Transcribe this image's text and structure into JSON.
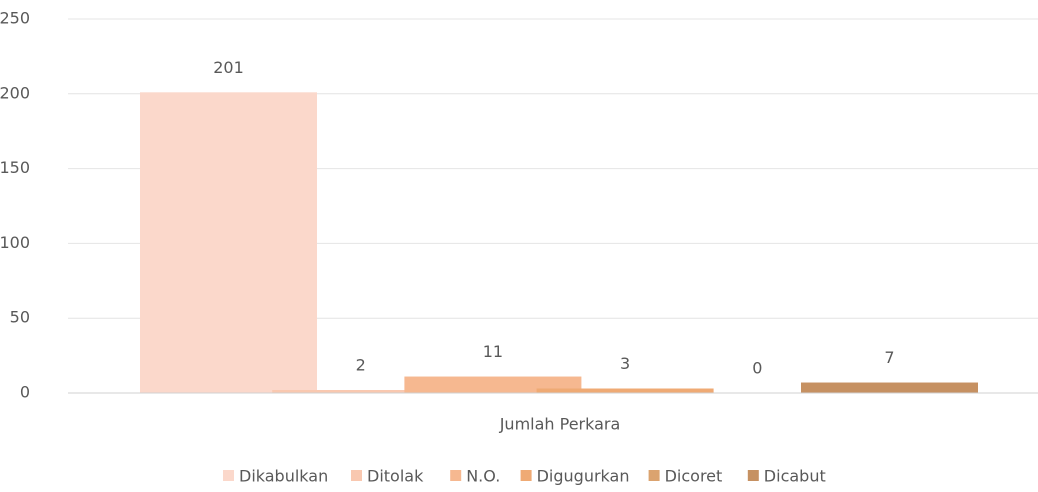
{
  "chart_data": {
    "type": "bar",
    "categories": [
      "Jumlah Perkara"
    ],
    "series": [
      {
        "name": "Dikabulkan",
        "color": "#fbd8cb",
        "values": [
          201
        ]
      },
      {
        "name": "Ditolak",
        "color": "#f9c8b0",
        "values": [
          2
        ]
      },
      {
        "name": "N.O.",
        "color": "#f6b890",
        "values": [
          11
        ]
      },
      {
        "name": "Digugurkan",
        "color": "#efaa74",
        "values": [
          3
        ]
      },
      {
        "name": "Dicoret",
        "color": "#dba36f",
        "values": [
          0
        ]
      },
      {
        "name": "Dicabut",
        "color": "#c69162",
        "values": [
          7
        ]
      }
    ],
    "ylim": [
      0,
      250
    ],
    "yticks": [
      0,
      50,
      100,
      150,
      200,
      250
    ],
    "grid": true
  }
}
